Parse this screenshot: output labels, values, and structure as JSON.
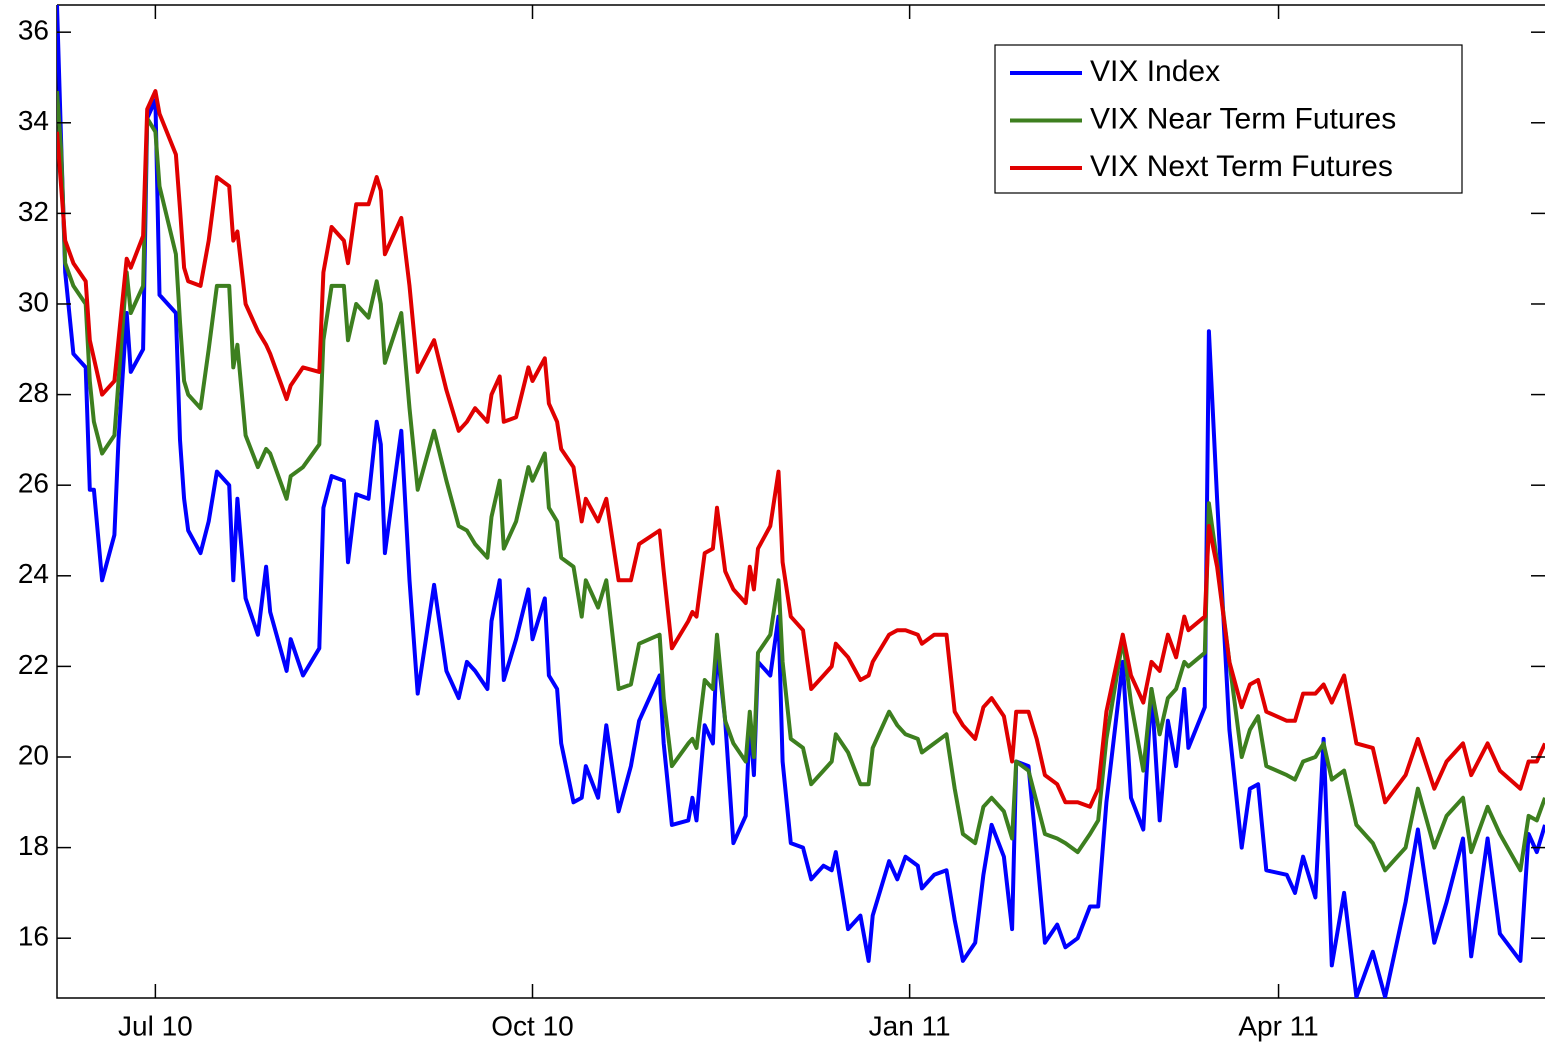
{
  "chart_data": {
    "type": "line",
    "x": [
      0,
      1,
      2,
      4,
      7,
      8,
      9,
      11,
      14,
      15,
      17,
      18,
      21,
      22,
      24,
      25,
      29,
      30,
      31,
      32,
      35,
      37,
      39,
      42,
      43,
      44,
      46,
      49,
      51,
      52,
      56,
      57,
      60,
      64,
      65,
      67,
      70,
      71,
      73,
      76,
      78,
      79,
      80,
      84,
      86,
      88,
      92,
      95,
      98,
      100,
      102,
      105,
      106,
      108,
      109,
      112,
      115,
      116,
      119,
      120,
      122,
      123,
      126,
      128,
      129,
      132,
      134,
      137,
      140,
      142,
      147,
      148,
      150,
      154,
      155,
      156,
      158,
      160,
      161,
      163,
      165,
      168,
      169,
      170,
      171,
      174,
      176,
      177,
      179,
      182,
      184,
      187,
      189,
      190,
      193,
      196,
      198,
      199,
      203,
      205,
      207,
      210,
      211,
      214,
      217,
      219,
      221,
      224,
      226,
      228,
      231,
      233,
      234,
      237,
      239,
      241,
      244,
      246,
      249,
      252,
      254,
      256,
      260,
      262,
      265,
      267,
      269,
      271,
      273,
      275,
      276,
      280,
      281,
      283,
      286,
      289,
      291,
      293,
      295,
      300,
      302,
      304,
      307,
      309,
      311,
      314,
      317,
      321,
      324,
      329,
      332,
      336,
      339,
      343,
      345,
      349,
      352,
      357,
      359,
      361,
      363
    ],
    "series": [
      {
        "name": "VIX Index",
        "color": "#0000ff",
        "values": [
          36.6,
          33.6,
          30.7,
          28.9,
          28.6,
          25.9,
          25.9,
          23.9,
          24.9,
          27.0,
          29.8,
          28.5,
          29.0,
          34.1,
          34.5,
          30.2,
          29.8,
          27.0,
          25.7,
          25.0,
          24.5,
          25.2,
          26.3,
          26.0,
          23.9,
          25.7,
          23.5,
          22.7,
          24.2,
          23.2,
          21.9,
          22.6,
          21.8,
          22.4,
          25.5,
          26.2,
          26.1,
          24.3,
          25.8,
          25.7,
          27.4,
          26.9,
          24.5,
          27.2,
          23.9,
          21.4,
          23.8,
          21.9,
          21.3,
          22.1,
          21.9,
          21.5,
          23.0,
          23.9,
          21.7,
          22.6,
          23.7,
          22.6,
          23.5,
          21.8,
          21.5,
          20.3,
          19.0,
          19.1,
          19.8,
          19.1,
          20.7,
          18.8,
          19.8,
          20.8,
          21.8,
          20.3,
          18.5,
          18.6,
          19.1,
          18.6,
          20.7,
          20.3,
          22.4,
          20.8,
          18.1,
          18.7,
          20.8,
          19.6,
          22.1,
          21.8,
          23.1,
          19.9,
          18.1,
          18.0,
          17.3,
          17.6,
          17.5,
          17.9,
          16.2,
          16.5,
          15.5,
          16.5,
          17.7,
          17.3,
          17.8,
          17.6,
          17.1,
          17.4,
          17.5,
          16.4,
          15.5,
          15.9,
          17.4,
          18.5,
          17.8,
          16.2,
          19.9,
          19.8,
          17.9,
          15.9,
          16.3,
          15.8,
          16.0,
          16.7,
          16.7,
          19.0,
          22.1,
          19.1,
          18.4,
          21.5,
          18.6,
          20.8,
          19.8,
          21.5,
          20.2,
          21.1,
          29.4,
          25.7,
          20.6,
          18.0,
          19.3,
          19.4,
          17.5,
          17.4,
          17.0,
          17.8,
          16.9,
          20.4,
          15.4,
          17.0,
          14.7,
          15.7,
          14.7,
          16.8,
          18.4,
          15.9,
          16.8,
          18.2,
          15.6,
          18.2,
          16.1,
          15.5,
          18.3,
          17.9,
          18.5
        ]
      },
      {
        "name": "VIX Near Term Futures",
        "color": "#3d7f1f",
        "values": [
          34.7,
          33.4,
          30.9,
          30.4,
          30.0,
          28.3,
          27.4,
          26.7,
          27.1,
          28.3,
          30.7,
          29.8,
          30.4,
          34.1,
          33.8,
          32.6,
          31.1,
          29.6,
          28.3,
          28.0,
          27.7,
          29.0,
          30.4,
          30.4,
          28.6,
          29.1,
          27.1,
          26.4,
          26.8,
          26.7,
          25.7,
          26.2,
          26.4,
          26.9,
          29.2,
          30.4,
          30.4,
          29.2,
          30.0,
          29.7,
          30.5,
          30.0,
          28.7,
          29.8,
          27.7,
          25.9,
          27.2,
          26.1,
          25.1,
          25.0,
          24.7,
          24.4,
          25.3,
          26.1,
          24.6,
          25.2,
          26.4,
          26.1,
          26.7,
          25.5,
          25.2,
          24.4,
          24.2,
          23.1,
          23.9,
          23.3,
          23.9,
          21.5,
          21.6,
          22.5,
          22.7,
          21.3,
          19.8,
          20.3,
          20.4,
          20.2,
          21.7,
          21.5,
          22.7,
          20.8,
          20.3,
          19.9,
          21.0,
          20.0,
          22.3,
          22.7,
          23.9,
          22.1,
          20.4,
          20.2,
          19.4,
          19.7,
          19.9,
          20.5,
          20.1,
          19.4,
          19.4,
          20.2,
          21.0,
          20.7,
          20.5,
          20.4,
          20.1,
          20.3,
          20.5,
          19.3,
          18.3,
          18.1,
          18.9,
          19.1,
          18.8,
          18.2,
          19.9,
          19.7,
          19.0,
          18.3,
          18.2,
          18.1,
          17.9,
          18.3,
          18.6,
          20.4,
          22.6,
          21.2,
          19.7,
          21.5,
          20.5,
          21.3,
          21.5,
          22.1,
          22.0,
          22.3,
          25.6,
          24.3,
          22.1,
          20.0,
          20.6,
          20.9,
          19.8,
          19.6,
          19.5,
          19.9,
          20.0,
          20.3,
          19.5,
          19.7,
          18.5,
          18.1,
          17.5,
          18.0,
          19.3,
          18.0,
          18.7,
          19.1,
          17.9,
          18.9,
          18.3,
          17.5,
          18.7,
          18.6,
          19.1
        ]
      },
      {
        "name": "VIX Next Term Futures",
        "color": "#e00000",
        "values": [
          33.8,
          32.6,
          31.4,
          30.9,
          30.5,
          29.2,
          28.8,
          28.0,
          28.3,
          29.2,
          31.0,
          30.8,
          31.5,
          34.3,
          34.7,
          34.2,
          33.3,
          32.1,
          30.8,
          30.5,
          30.4,
          31.4,
          32.8,
          32.6,
          31.4,
          31.6,
          30.0,
          29.4,
          29.1,
          28.9,
          27.9,
          28.2,
          28.6,
          28.5,
          30.7,
          31.7,
          31.4,
          30.9,
          32.2,
          32.2,
          32.8,
          32.5,
          31.1,
          31.9,
          30.4,
          28.5,
          29.2,
          28.1,
          27.2,
          27.4,
          27.7,
          27.4,
          28.0,
          28.4,
          27.4,
          27.5,
          28.6,
          28.3,
          28.8,
          27.8,
          27.4,
          26.8,
          26.4,
          25.2,
          25.7,
          25.2,
          25.7,
          23.9,
          23.9,
          24.7,
          25.0,
          24.1,
          22.4,
          23.0,
          23.2,
          23.1,
          24.5,
          24.6,
          25.5,
          24.1,
          23.7,
          23.4,
          24.2,
          23.7,
          24.6,
          25.1,
          26.3,
          24.3,
          23.1,
          22.8,
          21.5,
          21.8,
          22.0,
          22.5,
          22.2,
          21.7,
          21.8,
          22.1,
          22.7,
          22.8,
          22.8,
          22.7,
          22.5,
          22.7,
          22.7,
          21.0,
          20.7,
          20.4,
          21.1,
          21.3,
          20.9,
          19.9,
          21.0,
          21.0,
          20.4,
          19.6,
          19.4,
          19.0,
          19.0,
          18.9,
          19.3,
          21.0,
          22.7,
          21.8,
          21.2,
          22.1,
          21.9,
          22.7,
          22.2,
          23.1,
          22.8,
          23.1,
          25.1,
          24.2,
          22.1,
          21.1,
          21.6,
          21.7,
          21.0,
          20.8,
          20.8,
          21.4,
          21.4,
          21.6,
          21.2,
          21.8,
          20.3,
          20.2,
          19.0,
          19.6,
          20.4,
          19.3,
          19.9,
          20.3,
          19.6,
          20.3,
          19.7,
          19.3,
          19.9,
          19.9,
          20.3
        ]
      }
    ],
    "xlim": [
      0,
      363
    ],
    "xticks": [
      {
        "value": 24,
        "label": "Jul 10"
      },
      {
        "value": 116,
        "label": "Oct 10"
      },
      {
        "value": 208,
        "label": "Jan 11"
      },
      {
        "value": 298,
        "label": "Apr 11"
      }
    ],
    "ylim": [
      14.68,
      36.6
    ],
    "yticks": [
      16,
      18,
      20,
      22,
      24,
      26,
      28,
      30,
      32,
      34,
      36
    ],
    "legend": "upper right"
  }
}
